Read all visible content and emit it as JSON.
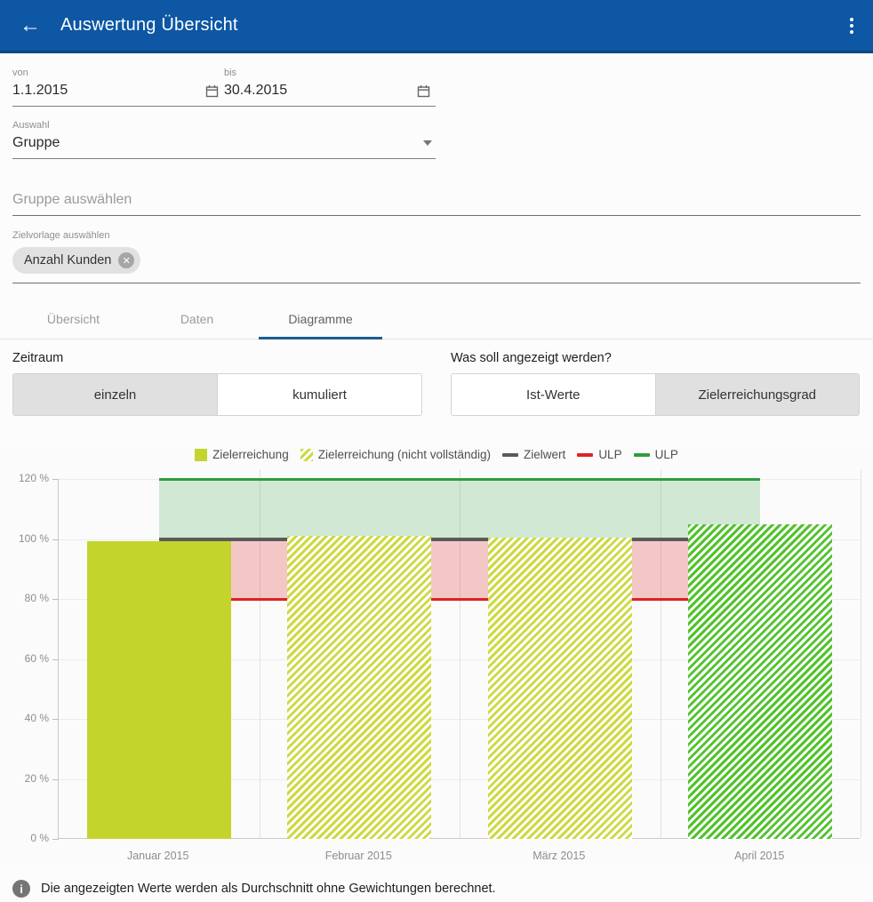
{
  "header": {
    "title": "Auswertung Übersicht",
    "bg_color": "#0d57a4"
  },
  "filters": {
    "von": {
      "label": "von",
      "value": "1.1.2015"
    },
    "bis": {
      "label": "bis",
      "value": "30.4.2015"
    },
    "auswahl": {
      "label": "Auswahl",
      "value": "Gruppe"
    },
    "gruppe_placeholder": "Gruppe auswählen",
    "zielvorlage": {
      "label": "Zielvorlage auswählen",
      "chip": "Anzahl Kunden",
      "chip_remove": "✕"
    }
  },
  "tabs": [
    {
      "label": "Übersicht",
      "active": false
    },
    {
      "label": "Daten",
      "active": false
    },
    {
      "label": "Diagramme",
      "active": true
    }
  ],
  "controls": {
    "zeitraum": {
      "label": "Zeitraum",
      "options": [
        {
          "label": "einzeln",
          "selected": false
        },
        {
          "label": "kumuliert",
          "selected": true
        }
      ]
    },
    "anzeige": {
      "label": "Was soll angezeigt werden?",
      "options": [
        {
          "label": "Ist-Werte",
          "selected": true
        },
        {
          "label": "Zielerreichungsgrad",
          "selected": false
        }
      ]
    }
  },
  "chart_data": {
    "type": "bar",
    "categories": [
      "Januar 2015",
      "Februar 2015",
      "März 2015",
      "April 2015"
    ],
    "series": [
      {
        "name": "Zielerreichung",
        "values": [
          99.3,
          101,
          100.3,
          105
        ]
      }
    ],
    "bar_styles": [
      "solid-yellowgreen",
      "hatched-yellowgreen",
      "hatched-yellowgreen",
      "hatched-green"
    ],
    "ylim": [
      0,
      120
    ],
    "yticks": [
      0,
      20,
      40,
      60,
      80,
      100,
      120
    ],
    "ytick_suffix": " %",
    "grid": true,
    "legend_position": "top-center",
    "target_line": {
      "name": "Zielwert",
      "value": 100,
      "color": "#5a5a5a"
    },
    "ulp_upper": {
      "name": "ULP",
      "value": 120,
      "color": "#2e9e3c",
      "band_from": 100,
      "band_fill": "rgba(47,159,61,0.20)"
    },
    "ulp_lower": {
      "name": "ULP",
      "value": 80,
      "color": "#dc2222",
      "band_to": 100,
      "band_fill": "rgba(220,32,32,0.24)"
    },
    "legend": [
      {
        "label": "Zielerreichung",
        "marker": "square-solid",
        "color": "#c3d42d"
      },
      {
        "label": "Zielerreichung (nicht vollständig)",
        "marker": "square-hatched",
        "color": "#cdd944"
      },
      {
        "label": "Zielwert",
        "marker": "line",
        "color": "#5a5a5a"
      },
      {
        "label": "ULP",
        "marker": "line",
        "color": "#dc2222"
      },
      {
        "label": "ULP",
        "marker": "line",
        "color": "#2e9e3c"
      }
    ]
  },
  "footer": {
    "note": "Die angezeigten Werte werden als Durchschnitt ohne Gewichtungen berechnet."
  }
}
